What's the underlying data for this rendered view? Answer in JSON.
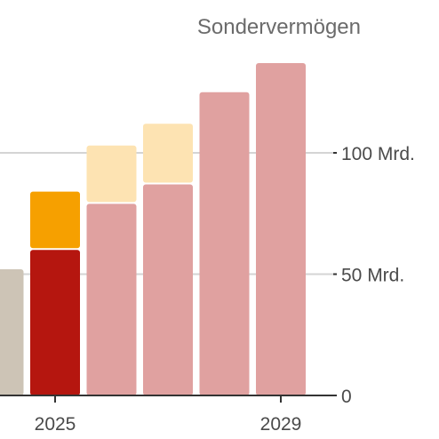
{
  "chart_data": {
    "type": "bar",
    "title": "Sondervermögen",
    "x_tick_labels": [
      {
        "category": 2025,
        "label": "2025"
      },
      {
        "category": 2029,
        "label": "2029"
      }
    ],
    "y_ticks": [
      {
        "value": 0,
        "label": "0"
      },
      {
        "value": 50,
        "label": "50 Mrd."
      },
      {
        "value": 100,
        "label": "100 Mrd."
      }
    ],
    "ylim": [
      0,
      140
    ],
    "grid": true,
    "bars": [
      {
        "category": 2024,
        "base": 52,
        "top": null,
        "color": "#cdc4b6",
        "top_color": null
      },
      {
        "category": 2025,
        "base": 60,
        "top": 84,
        "color": "#b5160f",
        "top_color": "#f6a000"
      },
      {
        "category": 2026,
        "base": 79,
        "top": 103,
        "color": "#e0a1a0",
        "top_color": "#fde3b2"
      },
      {
        "category": 2027,
        "base": 87,
        "top": 112,
        "color": "#e0a1a0",
        "top_color": "#fde3b2"
      },
      {
        "category": 2028,
        "base": 125,
        "top": null,
        "color": "#e0a1a0",
        "top_color": null
      },
      {
        "category": 2029,
        "base": 137,
        "top": null,
        "color": "#e0a1a0",
        "top_color": null
      }
    ]
  }
}
